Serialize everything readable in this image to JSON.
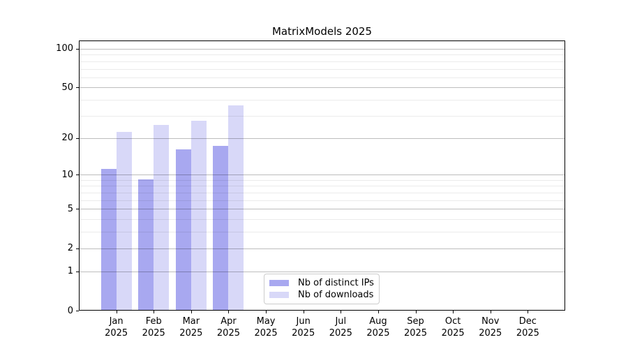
{
  "chart_data": {
    "type": "bar",
    "title": "MatrixModels 2025",
    "y_scale": "log1p",
    "ylim": [
      0,
      116
    ],
    "grid": "both",
    "legend_position": "lower center",
    "categories": [
      "Jan",
      "Feb",
      "Mar",
      "Apr",
      "May",
      "Jun",
      "Jul",
      "Aug",
      "Sep",
      "Oct",
      "Nov",
      "Dec"
    ],
    "category_year": "2025",
    "series": [
      {
        "name": "Nb of distinct IPs",
        "color": "#a8a8f0",
        "values": [
          11,
          9,
          16,
          17,
          0,
          0,
          0,
          0,
          0,
          0,
          0,
          0
        ]
      },
      {
        "name": "Nb of downloads",
        "color": "#d8d8f8",
        "values": [
          22,
          25,
          27,
          36,
          0,
          0,
          0,
          0,
          0,
          0,
          0,
          0
        ]
      }
    ],
    "y_major_ticks": [
      0,
      1,
      2,
      5,
      10,
      20,
      50,
      100
    ],
    "y_minor_gridlines": [
      3,
      4,
      6,
      7,
      8,
      9,
      30,
      40,
      60,
      70,
      80,
      90
    ],
    "xlabel": "",
    "ylabel": ""
  },
  "colors": {
    "distinct_ips_bar": "#a8a8f0",
    "downloads_bar": "#d8d8f8",
    "major_grid": "rgba(0,0,0,0.26)",
    "minor_grid": "rgba(0,0,0,0.08)",
    "legend_border": "#cccccc",
    "axis": "#000000"
  }
}
